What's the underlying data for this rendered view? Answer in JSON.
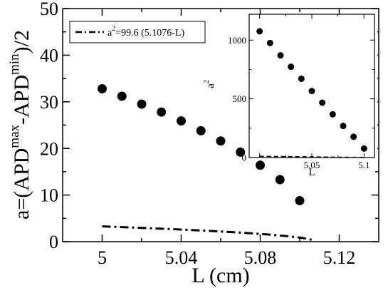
{
  "chart_data": [
    {
      "type": "scatter",
      "xlabel": "L (cm)",
      "ylabel": {
        "base1": "a=(APD",
        "sup1": "max",
        "base2": "-APD",
        "sup2": "min",
        "base3": ")/2"
      },
      "xlim": [
        4.98,
        5.14
      ],
      "ylim": [
        0,
        50
      ],
      "xticks": [
        5,
        5.04,
        5.08,
        5.12
      ],
      "xtick_labels": [
        "5",
        "5.04",
        "5.08",
        "5.12"
      ],
      "yticks": [
        0,
        10,
        20,
        30,
        40,
        50
      ],
      "ytick_labels": [
        "0",
        "10",
        "20",
        "30",
        "40",
        "50"
      ],
      "grid": false,
      "legend_position": "top-left",
      "series": [
        {
          "kind": "points",
          "x": [
            5.0,
            5.01,
            5.02,
            5.03,
            5.04,
            5.05,
            5.06,
            5.07,
            5.08,
            5.09,
            5.1
          ],
          "y": [
            32.8,
            31.2,
            29.5,
            27.8,
            25.9,
            23.8,
            21.6,
            19.2,
            16.4,
            13.3,
            8.8
          ]
        },
        {
          "kind": "fit",
          "name": "a²=99.6 (5.1076-L)",
          "legend_base": "a",
          "legend_sup": "2",
          "legend_rest": "=99.6 (5.1076-L)",
          "coefficient": 99.6,
          "L0": 5.1076,
          "x_from": 5.0,
          "x_to": 5.1076,
          "line_style": "dash-dot"
        }
      ],
      "colors": {
        "marks": "#000000",
        "background": "#ffffff"
      }
    },
    {
      "type": "scatter",
      "role": "inset",
      "xlabel": "L",
      "ylabel": {
        "base": "a",
        "sup": "2"
      },
      "xlim": [
        4.99,
        5.11
      ],
      "ylim": [
        0,
        1220
      ],
      "xticks": [
        5,
        5.05,
        5.1
      ],
      "xtick_labels": [
        "5",
        "5.05",
        "5.1"
      ],
      "yticks": [
        0,
        500,
        1000
      ],
      "ytick_labels": [
        "0",
        "500",
        "1000"
      ],
      "grid": false,
      "series": [
        {
          "kind": "points",
          "x": [
            5.0,
            5.01,
            5.02,
            5.03,
            5.04,
            5.05,
            5.06,
            5.07,
            5.08,
            5.09,
            5.1
          ],
          "y": [
            1075,
            975,
            870,
            773,
            671,
            566,
            467,
            368,
            269,
            177,
            77
          ]
        },
        {
          "kind": "fit",
          "coefficient": 99.6,
          "L0": 5.1076,
          "x_from": 5.0,
          "x_to": 5.1,
          "line_style": "dashed"
        }
      ]
    }
  ]
}
